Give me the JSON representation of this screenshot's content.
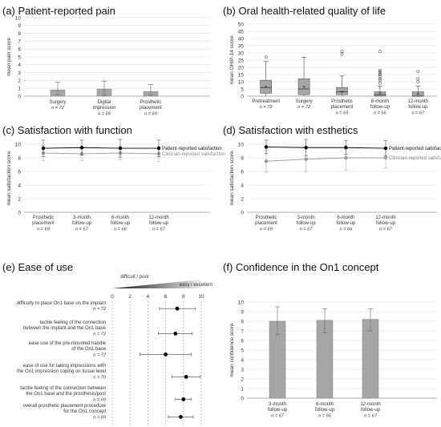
{
  "chart_data": [
    {
      "id": "a",
      "type": "bar",
      "title": "(a) Patient-reported pain",
      "ylabel": "mean pain score",
      "ylim": [
        0,
        10
      ],
      "yticks": [
        0,
        1,
        2,
        3,
        4,
        5,
        6,
        7,
        8,
        9,
        10
      ],
      "categories": [
        [
          "Surgery"
        ],
        [
          "Digital",
          "impression"
        ],
        [
          "Prosthetic",
          "placement"
        ]
      ],
      "n_labels": [
        "n = 72",
        "n = 69",
        "n = 69"
      ],
      "values": [
        0.8,
        0.9,
        0.6
      ],
      "err_low": [
        0.2,
        0.1,
        0.1
      ],
      "err_high": [
        1.8,
        1.9,
        1.5
      ],
      "grid": true
    },
    {
      "id": "b",
      "type": "box",
      "title": "(b) Oral health-related quality of life",
      "ylabel": "mean OHIP-14 score",
      "ylim": [
        0,
        50
      ],
      "yticks": [
        0,
        5,
        10,
        15,
        20,
        25,
        30,
        35,
        40,
        45,
        50
      ],
      "categories": [
        [
          "Pretreatment"
        ],
        [
          "Surgery"
        ],
        [
          "Prosthetic",
          "placement"
        ],
        [
          "6-month",
          "follow-up"
        ],
        [
          "12-month",
          "follow-up"
        ]
      ],
      "n_labels": [
        "n = 72",
        "n = 72",
        "n = 69",
        "n = 66",
        "n = 67"
      ],
      "boxes": [
        {
          "q1": 2,
          "median": 6,
          "q3": 11,
          "mean": 6.5,
          "wlow": 0,
          "whigh": 24,
          "outliers": [
            27
          ]
        },
        {
          "q1": 1,
          "median": 5,
          "q3": 12,
          "mean": 6.5,
          "wlow": 0,
          "whigh": 27,
          "outliers": []
        },
        {
          "q1": 1,
          "median": 3,
          "q3": 6,
          "mean": 3,
          "wlow": 0,
          "whigh": 14,
          "outliers": [
            29,
            31
          ]
        },
        {
          "q1": 0,
          "median": 1,
          "q3": 3,
          "mean": 2,
          "wlow": 0,
          "whigh": 7,
          "outliers": [
            9,
            11,
            12,
            14,
            15,
            16,
            17,
            18,
            31
          ]
        },
        {
          "q1": 0,
          "median": 0,
          "q3": 3,
          "mean": 1.5,
          "wlow": 0,
          "whigh": 7,
          "outliers": [
            10,
            12,
            17
          ]
        }
      ],
      "grid": true
    },
    {
      "id": "c",
      "type": "line",
      "title": "(c) Satisfaction with function",
      "ylabel": "mean satisfaction score",
      "ylim": [
        0,
        10
      ],
      "yticks": [
        0,
        2,
        4,
        6,
        8,
        10
      ],
      "categories": [
        [
          "Prosthetic",
          "placement"
        ],
        [
          "3-month",
          "follow-up"
        ],
        [
          "6-month",
          "follow-up"
        ],
        [
          "12-month",
          "follow-up"
        ]
      ],
      "n_labels": [
        "n = 69",
        "n = 67",
        "n = 66",
        "n = 67"
      ],
      "series": [
        {
          "name": "Patient-reported satisfaction",
          "values": [
            9.4,
            9.5,
            9.4,
            9.4
          ],
          "err": [
            1.2,
            1.1,
            1.3,
            1.2
          ],
          "color": "#000000"
        },
        {
          "name": "Clinician-reported satisfaction",
          "values": [
            8.7,
            8.6,
            8.7,
            8.6
          ],
          "err": [
            1.1,
            1.0,
            1.0,
            1.1
          ],
          "color": "#999999"
        }
      ],
      "grid": true
    },
    {
      "id": "d",
      "type": "line",
      "title": "(d) Satisfaction with esthetics",
      "ylabel": "mean satisfaction score",
      "ylim": [
        0,
        10
      ],
      "yticks": [
        0,
        2,
        4,
        6,
        8,
        10
      ],
      "categories": [
        [
          "Prosthetic",
          "placement"
        ],
        [
          "3-month",
          "follow-up"
        ],
        [
          "6-month",
          "follow-up"
        ],
        [
          "12-month",
          "follow-up"
        ]
      ],
      "n_labels": [
        "n = 69",
        "n = 67",
        "n = 66",
        "n = 67"
      ],
      "series": [
        {
          "name": "Patient-reported satisfaction",
          "values": [
            9.6,
            9.5,
            9.5,
            9.4
          ],
          "err": [
            1.0,
            1.2,
            1.0,
            1.1
          ],
          "color": "#000000"
        },
        {
          "name": "Clinician-reported satisfaction",
          "values": [
            7.5,
            7.8,
            8.0,
            8.0
          ],
          "err": [
            1.6,
            1.8,
            1.8,
            1.5
          ],
          "color": "#999999"
        }
      ],
      "grid": true
    },
    {
      "id": "e",
      "type": "dot",
      "title": "(e) Ease of use",
      "scale_left": "difficult / poor",
      "scale_right": "easy / excellent",
      "xlim": [
        0,
        10
      ],
      "xticks": [
        0,
        2,
        4,
        6,
        8,
        10
      ],
      "items": [
        {
          "lines": [
            "difficulty to place On1 base on the implant"
          ],
          "n": "n = 72",
          "value": 7.3,
          "err": 2.0
        },
        {
          "lines": [
            "tactile feeling of the connection",
            "between the implant and the On1 base"
          ],
          "n": "n = 72",
          "value": 7.1,
          "err": 1.9
        },
        {
          "lines": [
            "ease use of the pre-mounted handle",
            "of the On1 base"
          ],
          "n": "n = 72",
          "value": 6.0,
          "err": 2.9
        },
        {
          "lines": [
            "ease of use for taking impressions with",
            "the On1 impression coping on tissue level"
          ],
          "n": "n = 70",
          "value": 8.3,
          "err": 1.6
        },
        {
          "lines": [
            "tactile feeling of the connection between",
            "the On1 base and the prosthesis/post"
          ],
          "n": "n = 69",
          "value": 8.0,
          "err": 0.9
        },
        {
          "lines": [
            "overall prosthetic placement procedure",
            "for the On1 concept"
          ],
          "n": "n = 69",
          "value": 7.7,
          "err": 1.4
        }
      ]
    },
    {
      "id": "f",
      "type": "bar",
      "title": "(f) Confidence in the On1 concept",
      "ylabel": "mean confidence score",
      "ylim": [
        0,
        10
      ],
      "yticks": [
        0,
        1,
        2,
        3,
        4,
        5,
        6,
        7,
        8,
        9,
        10
      ],
      "categories": [
        [
          "3-month",
          "follow-up"
        ],
        [
          "6-month",
          "follow-up"
        ],
        [
          "12-month",
          "follow-up"
        ]
      ],
      "n_labels": [
        "n = 67",
        "n = 66",
        "n = 67"
      ],
      "values": [
        8.0,
        8.1,
        8.2
      ],
      "err_low": [
        6.6,
        6.8,
        7.0
      ],
      "err_high": [
        9.5,
        9.3,
        9.3
      ],
      "grid": true
    }
  ]
}
